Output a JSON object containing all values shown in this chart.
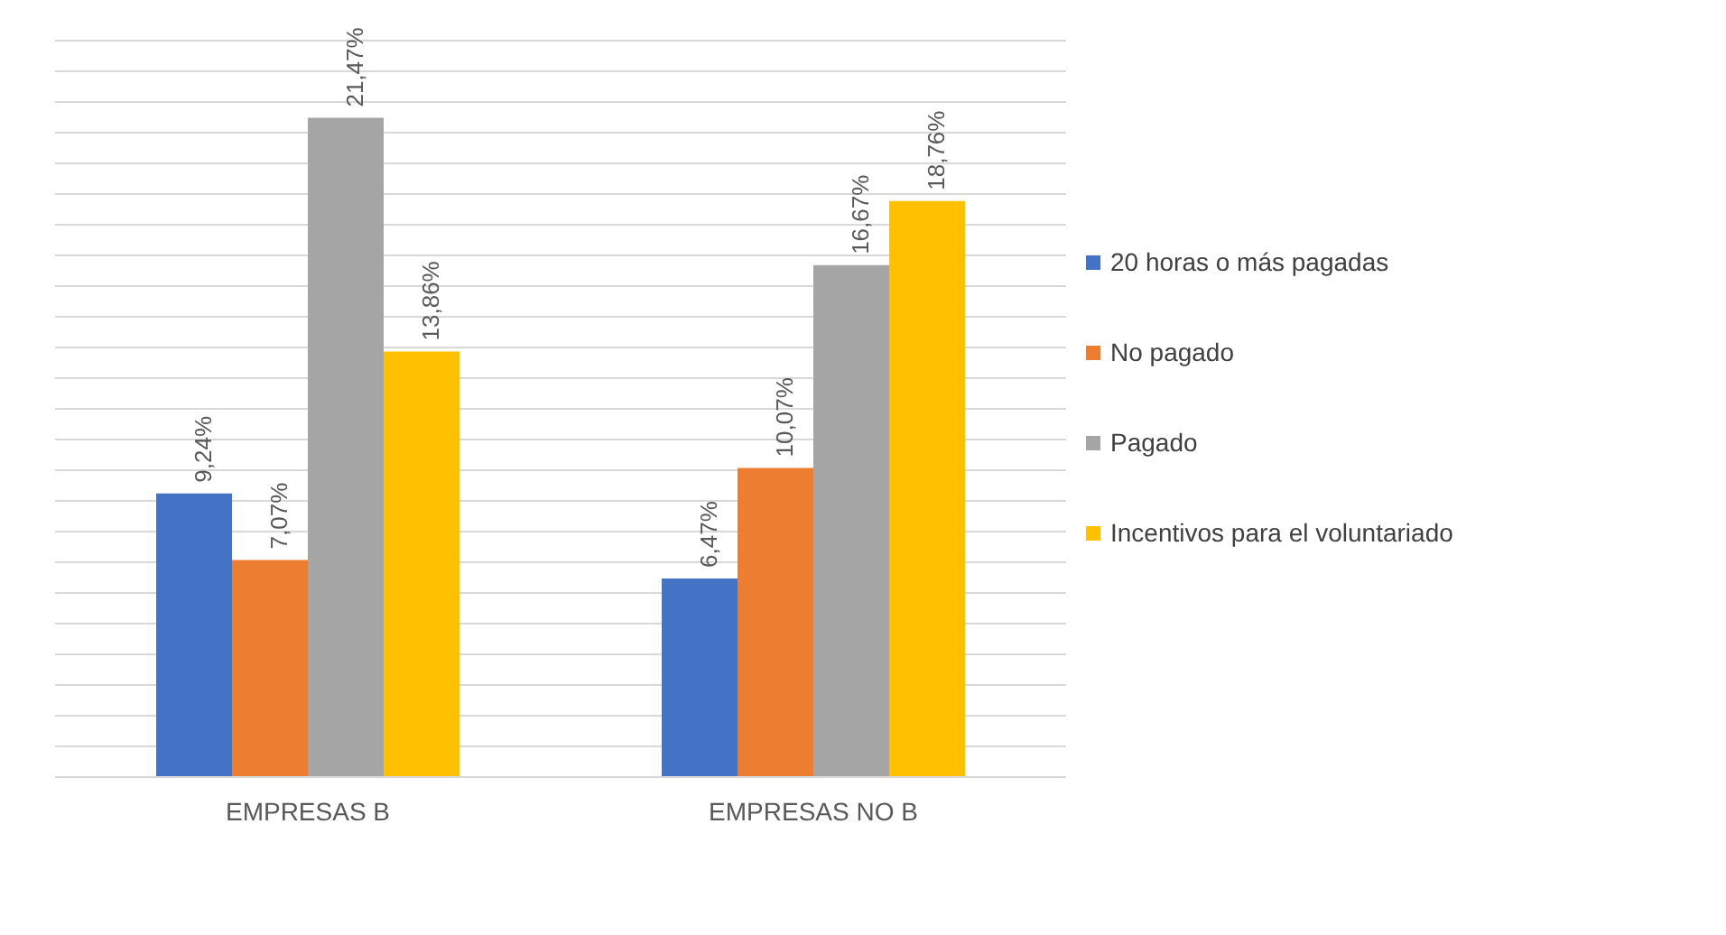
{
  "chart_data": {
    "type": "bar",
    "categories": [
      "EMPRESAS B",
      "EMPRESAS NO B"
    ],
    "series": [
      {
        "name": "20 horas o más pagadas",
        "color": "#4472c4",
        "values": [
          9.24,
          6.47
        ],
        "value_labels": [
          "9,24%",
          "6,47%"
        ]
      },
      {
        "name": "No pagado",
        "color": "#ed7d31",
        "values": [
          7.07,
          10.07
        ],
        "value_labels": [
          "7,07%",
          "10,07%"
        ]
      },
      {
        "name": "Pagado",
        "color": "#a5a5a5",
        "values": [
          21.47,
          16.67
        ],
        "value_labels": [
          "21,47%",
          "16,67%"
        ]
      },
      {
        "name": "Incentivos para el voluntariado",
        "color": "#ffc000",
        "values": [
          13.86,
          18.76
        ],
        "value_labels": [
          "13,86%",
          "18,76%"
        ]
      }
    ],
    "tick_labels": "x",
    "grid": "y",
    "legend": "right"
  }
}
